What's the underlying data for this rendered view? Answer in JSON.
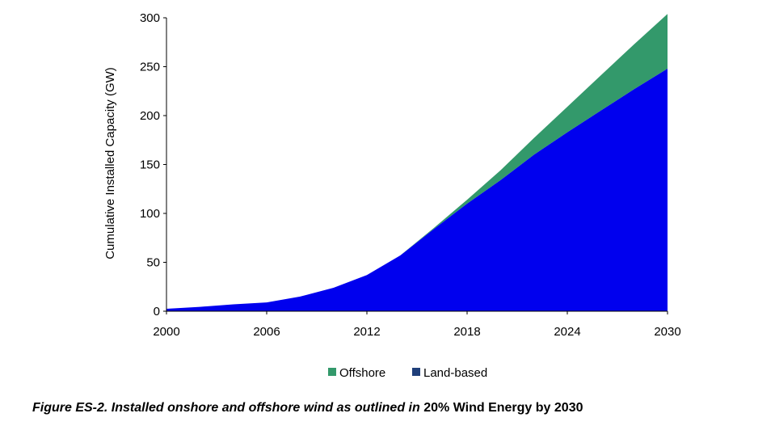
{
  "chart_data": {
    "type": "area",
    "stacked": true,
    "x": [
      2000,
      2002,
      2004,
      2006,
      2008,
      2010,
      2012,
      2014,
      2016,
      2018,
      2020,
      2022,
      2024,
      2026,
      2028,
      2030
    ],
    "series": [
      {
        "name": "Land-based",
        "color": "#0000ee",
        "values": [
          2.5,
          4.5,
          7,
          9,
          15,
          24,
          37,
          57,
          84,
          110,
          134,
          160,
          183,
          205,
          227,
          248
        ]
      },
      {
        "name": "Offshore",
        "color": "#33996b",
        "values": [
          0,
          0,
          0,
          0,
          0,
          0,
          0,
          0,
          1,
          4,
          10,
          17,
          26,
          36,
          46,
          56
        ]
      }
    ],
    "xticks": [
      "2000",
      "2006",
      "2012",
      "2018",
      "2024",
      "2030"
    ],
    "yticks": [
      "0",
      "50",
      "100",
      "150",
      "200",
      "250",
      "300"
    ],
    "xlim": [
      2000,
      2030
    ],
    "ylim": [
      0,
      300
    ],
    "ylabel": "Cumulative Installed Capacity (GW)",
    "xlabel": "",
    "grid": false,
    "legend_position": "bottom",
    "legend": [
      {
        "label": "Offshore",
        "color": "#33996b"
      },
      {
        "label": "Land-based",
        "color": "#1f3f7a"
      }
    ]
  },
  "caption": {
    "italic_part": "Figure ES-2. Installed onshore and offshore wind as outlined in",
    "normal_part": "20% Wind Energy by 2030"
  }
}
